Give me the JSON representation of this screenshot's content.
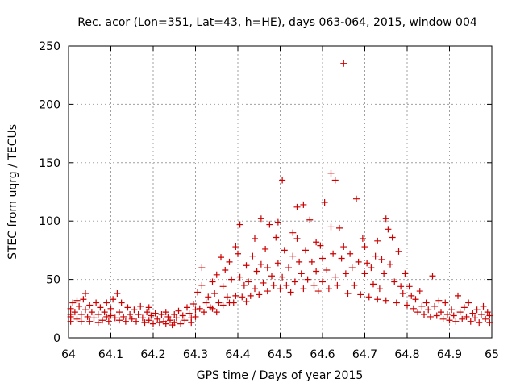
{
  "chart_data": {
    "type": "scatter",
    "title": "Rec. acor (Lon=351, Lat=43, h=HE), days 063-064, 2015, window 004",
    "xlabel": "GPS time / Days of year 2015",
    "ylabel": "STEC from uqrg / TECUs",
    "xlim": [
      64,
      65
    ],
    "ylim": [
      0,
      250
    ],
    "xticks": [
      "64",
      "64.1",
      "64.2",
      "64.3",
      "64.4",
      "64.5",
      "64.6",
      "64.7",
      "64.8",
      "64.9",
      "65"
    ],
    "yticks": [
      "0",
      "50",
      "100",
      "150",
      "200",
      "250"
    ],
    "grid": true,
    "marker": "+",
    "color": "#cc0000",
    "series": [
      {
        "points": [
          [
            64.005,
            25
          ],
          [
            64.005,
            20
          ],
          [
            64.005,
            18
          ],
          [
            64.005,
            14
          ],
          [
            64.01,
            30
          ],
          [
            64.015,
            22
          ],
          [
            64.02,
            32
          ],
          [
            64.02,
            16
          ],
          [
            64.025,
            27
          ],
          [
            64.03,
            20
          ],
          [
            64.03,
            14
          ],
          [
            64.035,
            33
          ],
          [
            64.04,
            38
          ],
          [
            64.04,
            24
          ],
          [
            64.045,
            18
          ],
          [
            64.05,
            28
          ],
          [
            64.05,
            14
          ],
          [
            64.055,
            22
          ],
          [
            64.06,
            17
          ],
          [
            64.065,
            30
          ],
          [
            64.07,
            20
          ],
          [
            64.07,
            13
          ],
          [
            64.075,
            26
          ],
          [
            64.08,
            15
          ],
          [
            64.085,
            22
          ],
          [
            64.09,
            30
          ],
          [
            64.09,
            18
          ],
          [
            64.095,
            14
          ],
          [
            64.1,
            25
          ],
          [
            64.1,
            19
          ],
          [
            64.105,
            33
          ],
          [
            64.11,
            17
          ],
          [
            64.115,
            38
          ],
          [
            64.12,
            22
          ],
          [
            64.12,
            15
          ],
          [
            64.125,
            30
          ],
          [
            64.13,
            18
          ],
          [
            64.135,
            14
          ],
          [
            64.14,
            26
          ],
          [
            64.145,
            20
          ],
          [
            64.15,
            16
          ],
          [
            64.155,
            24
          ],
          [
            64.16,
            14
          ],
          [
            64.165,
            20
          ],
          [
            64.17,
            27
          ],
          [
            64.175,
            17
          ],
          [
            64.18,
            13
          ],
          [
            64.185,
            22
          ],
          [
            64.19,
            26
          ],
          [
            64.19,
            15
          ],
          [
            64.195,
            19
          ],
          [
            64.2,
            12
          ],
          [
            64.205,
            21
          ],
          [
            64.21,
            16
          ],
          [
            64.215,
            13
          ],
          [
            64.22,
            20
          ],
          [
            64.225,
            14
          ],
          [
            64.23,
            22
          ],
          [
            64.23,
            12
          ],
          [
            64.235,
            18
          ],
          [
            64.24,
            15
          ],
          [
            64.245,
            11
          ],
          [
            64.25,
            20
          ],
          [
            64.25,
            13
          ],
          [
            64.255,
            17
          ],
          [
            64.26,
            23
          ],
          [
            64.265,
            12
          ],
          [
            64.27,
            19
          ],
          [
            64.275,
            15
          ],
          [
            64.28,
            26
          ],
          [
            64.285,
            21
          ],
          [
            64.29,
            17
          ],
          [
            64.29,
            13
          ],
          [
            64.295,
            29
          ],
          [
            64.3,
            24
          ],
          [
            64.3,
            18
          ],
          [
            64.305,
            39
          ],
          [
            64.31,
            25
          ],
          [
            64.315,
            45
          ],
          [
            64.315,
            60
          ],
          [
            64.32,
            22
          ],
          [
            64.325,
            30
          ],
          [
            64.33,
            35
          ],
          [
            64.335,
            26
          ],
          [
            64.34,
            48
          ],
          [
            64.34,
            25
          ],
          [
            64.345,
            38
          ],
          [
            64.35,
            22
          ],
          [
            64.35,
            54
          ],
          [
            64.355,
            30
          ],
          [
            64.36,
            69
          ],
          [
            64.365,
            44
          ],
          [
            64.365,
            28
          ],
          [
            64.37,
            58
          ],
          [
            64.375,
            35
          ],
          [
            64.38,
            30
          ],
          [
            64.38,
            65
          ],
          [
            64.385,
            50
          ],
          [
            64.39,
            30
          ],
          [
            64.395,
            78
          ],
          [
            64.395,
            36
          ],
          [
            64.4,
            72
          ],
          [
            64.405,
            97
          ],
          [
            64.405,
            52
          ],
          [
            64.41,
            35
          ],
          [
            64.415,
            45
          ],
          [
            64.42,
            62
          ],
          [
            64.42,
            31
          ],
          [
            64.425,
            48
          ],
          [
            64.43,
            36
          ],
          [
            64.435,
            70
          ],
          [
            64.44,
            85
          ],
          [
            64.44,
            42
          ],
          [
            64.445,
            57
          ],
          [
            64.45,
            37
          ],
          [
            64.455,
            102
          ],
          [
            64.455,
            63
          ],
          [
            64.46,
            47
          ],
          [
            64.465,
            76
          ],
          [
            64.47,
            40
          ],
          [
            64.47,
            60
          ],
          [
            64.475,
            97
          ],
          [
            64.48,
            53
          ],
          [
            64.485,
            45
          ],
          [
            64.49,
            86
          ],
          [
            64.495,
            99
          ],
          [
            64.495,
            64
          ],
          [
            64.5,
            42
          ],
          [
            64.505,
            135
          ],
          [
            64.505,
            52
          ],
          [
            64.51,
            75
          ],
          [
            64.515,
            45
          ],
          [
            64.52,
            60
          ],
          [
            64.525,
            39
          ],
          [
            64.53,
            90
          ],
          [
            64.53,
            70
          ],
          [
            64.535,
            48
          ],
          [
            64.54,
            112
          ],
          [
            64.54,
            85
          ],
          [
            64.545,
            65
          ],
          [
            64.55,
            55
          ],
          [
            64.555,
            114
          ],
          [
            64.555,
            42
          ],
          [
            64.56,
            75
          ],
          [
            64.565,
            50
          ],
          [
            64.57,
            101
          ],
          [
            64.575,
            65
          ],
          [
            64.58,
            45
          ],
          [
            64.585,
            82
          ],
          [
            64.585,
            57
          ],
          [
            64.59,
            40
          ],
          [
            64.595,
            79
          ],
          [
            64.6,
            68
          ],
          [
            64.6,
            48
          ],
          [
            64.605,
            116
          ],
          [
            64.61,
            58
          ],
          [
            64.615,
            42
          ],
          [
            64.62,
            141
          ],
          [
            64.62,
            95
          ],
          [
            64.625,
            72
          ],
          [
            64.63,
            135
          ],
          [
            64.63,
            52
          ],
          [
            64.635,
            45
          ],
          [
            64.64,
            94
          ],
          [
            64.645,
            68
          ],
          [
            64.65,
            235
          ],
          [
            64.65,
            78
          ],
          [
            64.655,
            55
          ],
          [
            64.66,
            38
          ],
          [
            64.665,
            72
          ],
          [
            64.67,
            60
          ],
          [
            64.675,
            45
          ],
          [
            64.68,
            119
          ],
          [
            64.685,
            65
          ],
          [
            64.69,
            37
          ],
          [
            64.695,
            85
          ],
          [
            64.7,
            78
          ],
          [
            64.7,
            55
          ],
          [
            64.705,
            64
          ],
          [
            64.71,
            35
          ],
          [
            64.715,
            60
          ],
          [
            64.72,
            46
          ],
          [
            64.725,
            70
          ],
          [
            64.73,
            83
          ],
          [
            64.73,
            33
          ],
          [
            64.735,
            42
          ],
          [
            64.74,
            67
          ],
          [
            64.745,
            55
          ],
          [
            64.75,
            102
          ],
          [
            64.75,
            32
          ],
          [
            64.755,
            93
          ],
          [
            64.76,
            63
          ],
          [
            64.765,
            86
          ],
          [
            64.77,
            48
          ],
          [
            64.775,
            30
          ],
          [
            64.78,
            74
          ],
          [
            64.785,
            44
          ],
          [
            64.79,
            38
          ],
          [
            64.795,
            55
          ],
          [
            64.8,
            28
          ],
          [
            64.805,
            44
          ],
          [
            64.81,
            36
          ],
          [
            64.815,
            25
          ],
          [
            64.82,
            33
          ],
          [
            64.825,
            22
          ],
          [
            64.83,
            40
          ],
          [
            64.835,
            27
          ],
          [
            64.84,
            20
          ],
          [
            64.845,
            30
          ],
          [
            64.85,
            24
          ],
          [
            64.855,
            18
          ],
          [
            64.86,
            53
          ],
          [
            64.865,
            27
          ],
          [
            64.87,
            19
          ],
          [
            64.875,
            32
          ],
          [
            64.88,
            22
          ],
          [
            64.885,
            16
          ],
          [
            64.89,
            30
          ],
          [
            64.895,
            20
          ],
          [
            64.9,
            15
          ],
          [
            64.905,
            24
          ],
          [
            64.91,
            19
          ],
          [
            64.915,
            14
          ],
          [
            64.92,
            36
          ],
          [
            64.925,
            22
          ],
          [
            64.93,
            16
          ],
          [
            64.935,
            26
          ],
          [
            64.94,
            18
          ],
          [
            64.945,
            30
          ],
          [
            64.95,
            14
          ],
          [
            64.955,
            21
          ],
          [
            64.96,
            17
          ],
          [
            64.965,
            24
          ],
          [
            64.97,
            13
          ],
          [
            64.975,
            20
          ],
          [
            64.98,
            27
          ],
          [
            64.985,
            16
          ],
          [
            64.99,
            22
          ],
          [
            64.995,
            13
          ],
          [
            64.995,
            19
          ]
        ]
      }
    ]
  }
}
